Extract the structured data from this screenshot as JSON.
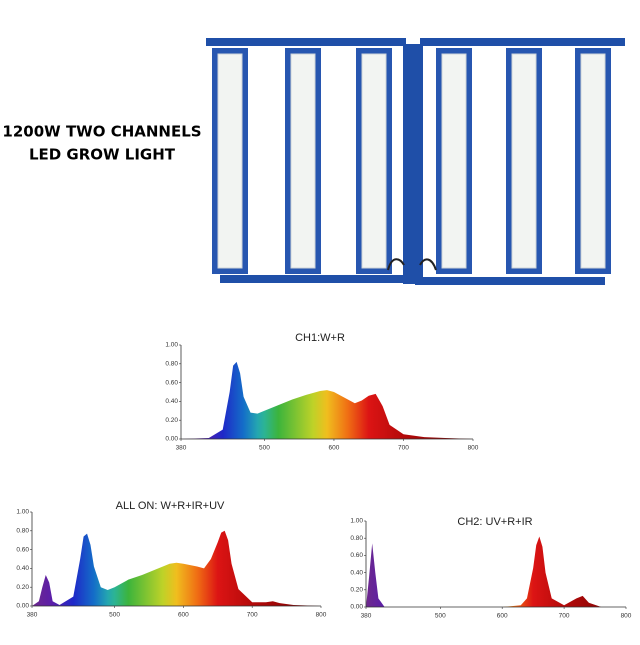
{
  "header": {
    "lines": [
      "1200W TWO CHANNELS",
      "LED GROW LIGHT"
    ]
  },
  "chart_data": [
    {
      "type": "area",
      "title": "CH1:W+R",
      "x": [
        380,
        420,
        440,
        450,
        455,
        460,
        465,
        470,
        480,
        490,
        500,
        520,
        540,
        560,
        580,
        590,
        600,
        620,
        630,
        640,
        650,
        660,
        670,
        680,
        700,
        730,
        760,
        800
      ],
      "values": [
        0,
        0.01,
        0.1,
        0.5,
        0.78,
        0.82,
        0.7,
        0.45,
        0.28,
        0.27,
        0.3,
        0.36,
        0.42,
        0.47,
        0.51,
        0.52,
        0.5,
        0.42,
        0.38,
        0.41,
        0.46,
        0.48,
        0.35,
        0.15,
        0.05,
        0.02,
        0.01,
        0
      ],
      "xlim": [
        380,
        800
      ],
      "xticks": [
        380,
        500,
        600,
        700,
        800
      ],
      "ylim": [
        0,
        1
      ],
      "yticks": [
        {
          "value": 0,
          "label": "0.00"
        },
        {
          "value": 0.2,
          "label": "0.20"
        },
        {
          "value": 0.4,
          "label": "0.40"
        },
        {
          "value": 0.6,
          "label": "0.60"
        },
        {
          "value": 0.8,
          "label": "0.80"
        },
        {
          "value": 1,
          "label": "1.00"
        }
      ]
    },
    {
      "type": "area",
      "title": "ALL ON: W+R+IR+UV",
      "x": [
        380,
        390,
        395,
        400,
        405,
        410,
        420,
        440,
        450,
        455,
        460,
        465,
        470,
        480,
        490,
        500,
        520,
        540,
        560,
        580,
        590,
        600,
        620,
        630,
        640,
        650,
        655,
        660,
        665,
        670,
        680,
        700,
        720,
        730,
        740,
        760,
        800
      ],
      "values": [
        0,
        0.05,
        0.2,
        0.33,
        0.25,
        0.05,
        0.01,
        0.1,
        0.5,
        0.74,
        0.77,
        0.65,
        0.42,
        0.2,
        0.17,
        0.2,
        0.28,
        0.33,
        0.39,
        0.45,
        0.46,
        0.45,
        0.42,
        0.4,
        0.5,
        0.68,
        0.78,
        0.8,
        0.7,
        0.45,
        0.18,
        0.04,
        0.04,
        0.05,
        0.03,
        0.01,
        0
      ],
      "xlim": [
        380,
        800
      ],
      "xticks": [
        380,
        500,
        600,
        700,
        800
      ],
      "ylim": [
        0,
        1
      ],
      "yticks": [
        {
          "value": 0,
          "label": "0.00"
        },
        {
          "value": 0.2,
          "label": "0.20"
        },
        {
          "value": 0.4,
          "label": "0.40"
        },
        {
          "value": 0.6,
          "label": "0.60"
        },
        {
          "value": 0.8,
          "label": "0.80"
        },
        {
          "value": 1,
          "label": "1.00"
        }
      ]
    },
    {
      "type": "area",
      "title": "CH2: UV+R+IR",
      "x": [
        380,
        385,
        390,
        395,
        400,
        410,
        600,
        630,
        640,
        650,
        655,
        660,
        665,
        670,
        680,
        700,
        720,
        730,
        740,
        760,
        800
      ],
      "values": [
        0,
        0.35,
        0.74,
        0.4,
        0.1,
        0,
        0,
        0.02,
        0.1,
        0.45,
        0.72,
        0.82,
        0.7,
        0.4,
        0.1,
        0.02,
        0.1,
        0.13,
        0.05,
        0,
        0
      ],
      "xlim": [
        380,
        800
      ],
      "xticks": [
        380,
        500,
        600,
        700,
        800
      ],
      "ylim": [
        0,
        1
      ],
      "yticks": [
        {
          "value": 0,
          "label": "0.00"
        },
        {
          "value": 0.2,
          "label": "0.20"
        },
        {
          "value": 0.4,
          "label": "0.40"
        },
        {
          "value": 0.6,
          "label": "0.60"
        },
        {
          "value": 0.8,
          "label": "0.80"
        },
        {
          "value": 1,
          "label": "1.00"
        }
      ]
    }
  ]
}
